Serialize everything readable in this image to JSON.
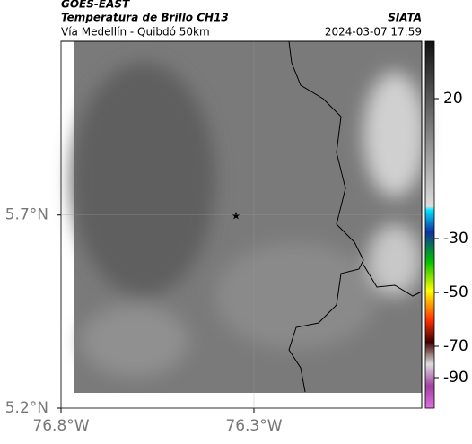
{
  "header": {
    "title": "GOES-EAST",
    "subtitle": "Temperatura de Brillo CH13",
    "source": "SIATA",
    "region": "Vía Medellín - Quibdó 50km",
    "datetime": "2024-03-07 17:59"
  },
  "map": {
    "xlim": [
      -76.8,
      -75.865
    ],
    "ylim": [
      5.2,
      6.15
    ],
    "xticks": [
      {
        "value": -76.8,
        "label": "76.8°W"
      },
      {
        "value": -76.3,
        "label": "76.3°W"
      }
    ],
    "yticks": [
      {
        "value": 5.7,
        "label": "5.7°N"
      },
      {
        "value": 5.2,
        "label": "5.2°N"
      }
    ]
  },
  "colorbar": {
    "ticks": [
      20,
      -30,
      -50,
      -70,
      -90
    ]
  }
}
